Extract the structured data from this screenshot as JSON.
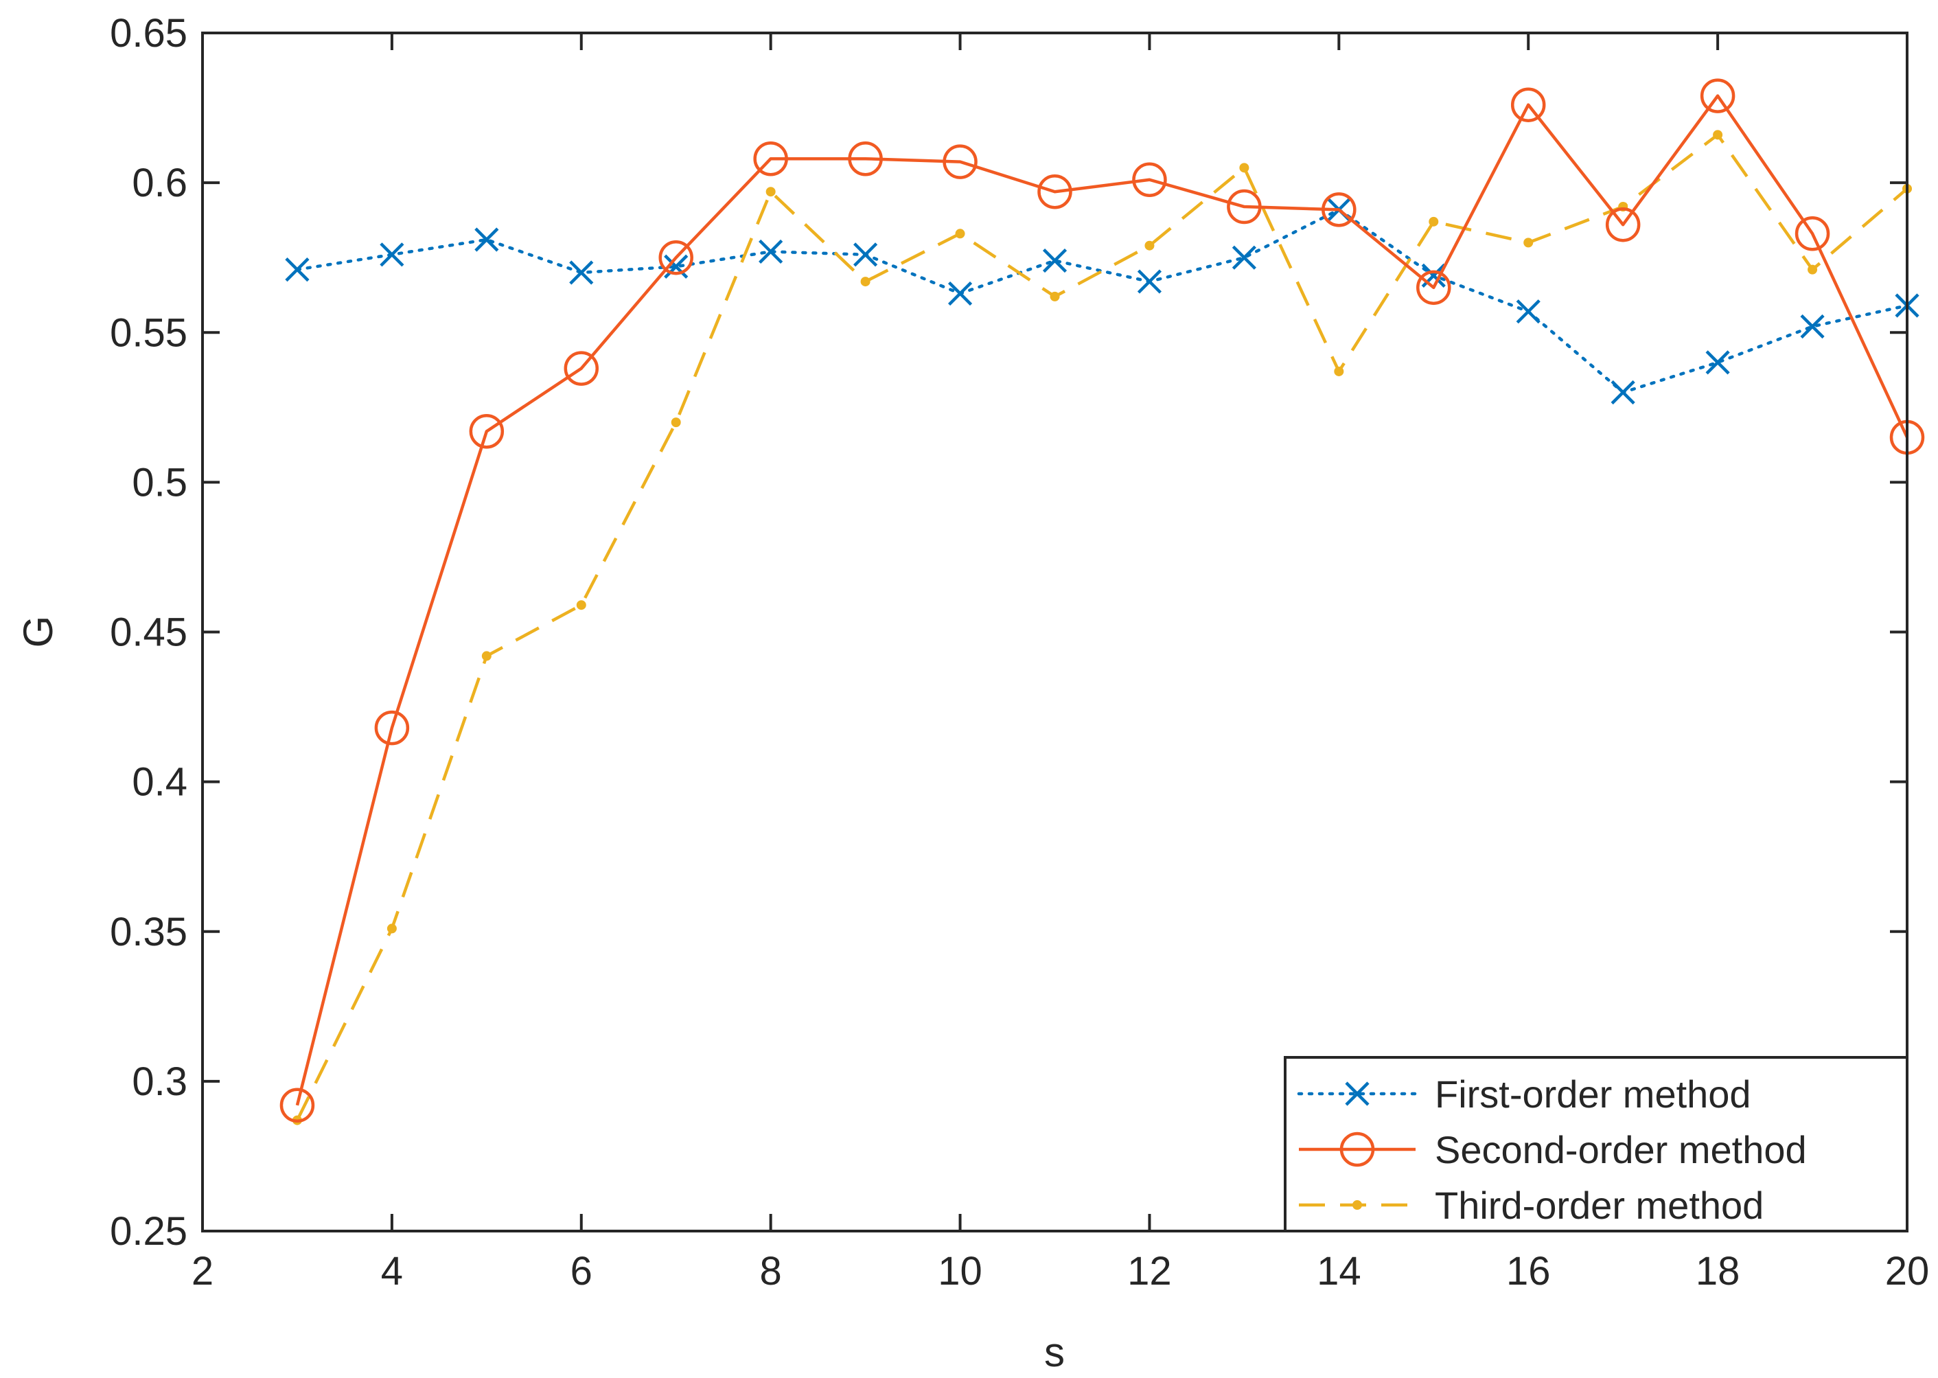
{
  "chart_data": {
    "type": "line",
    "title": "",
    "xlabel": "s",
    "ylabel": "G",
    "xlim": [
      2,
      20
    ],
    "ylim": [
      0.25,
      0.65
    ],
    "x_ticks": [
      "2",
      "4",
      "6",
      "8",
      "10",
      "12",
      "14",
      "16",
      "18",
      "20"
    ],
    "y_ticks": [
      "0.25",
      "0.3",
      "0.35",
      "0.4",
      "0.45",
      "0.5",
      "0.55",
      "0.6",
      "0.65"
    ],
    "grid": false,
    "legend_position": "bottom-right",
    "x": [
      3,
      4,
      5,
      6,
      7,
      8,
      9,
      10,
      11,
      12,
      13,
      14,
      15,
      16,
      17,
      18,
      19,
      20
    ],
    "series": [
      {
        "name": "First-order method",
        "color": "#0072BD",
        "line_style": "dotted",
        "marker": "x",
        "values": [
          0.571,
          0.576,
          0.581,
          0.57,
          0.572,
          0.577,
          0.576,
          0.563,
          0.574,
          0.567,
          0.575,
          0.591,
          0.569,
          0.557,
          0.53,
          0.54,
          0.552,
          0.559
        ]
      },
      {
        "name": "Second-order method",
        "color": "#F15A22",
        "line_style": "solid",
        "marker": "o",
        "values": [
          0.292,
          0.418,
          0.517,
          0.538,
          0.575,
          0.608,
          0.608,
          0.607,
          0.597,
          0.601,
          0.592,
          0.591,
          0.565,
          0.626,
          0.586,
          0.629,
          0.583,
          0.515
        ]
      },
      {
        "name": "Third-order method",
        "color": "#EDB120",
        "line_style": "dashed",
        "marker": "dot",
        "values": [
          0.287,
          0.351,
          0.442,
          0.459,
          0.52,
          0.597,
          0.567,
          0.583,
          0.562,
          0.579,
          0.605,
          0.537,
          0.587,
          0.58,
          0.592,
          0.616,
          0.571,
          0.598
        ]
      }
    ]
  }
}
